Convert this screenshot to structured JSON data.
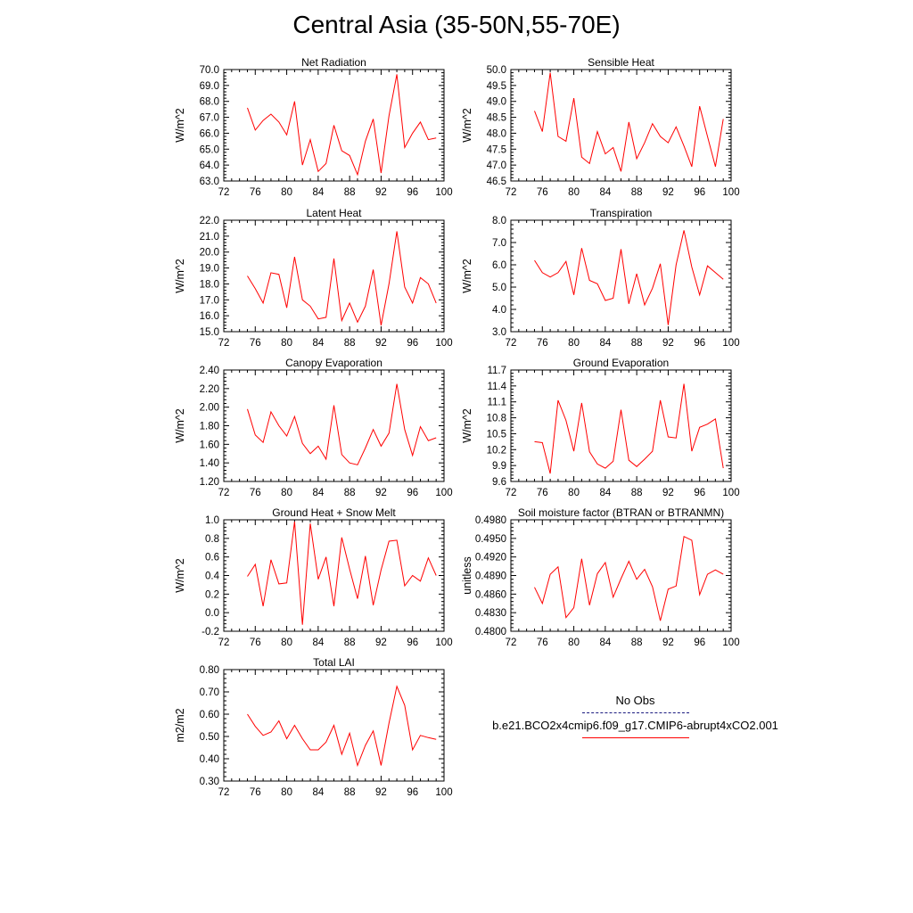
{
  "title": "Central Asia (35-50N,55-70E)",
  "legend": {
    "obs_label": "No Obs",
    "case_label": "b.e21.BCO2x4cmip6.f09_g17.CMIP6-abrupt4xCO2.001",
    "obs_color": "#1a1a80",
    "case_color": "#ff0000"
  },
  "chart_data": [
    {
      "type": "line",
      "title": "Net Radiation",
      "ylabel": "W/m^2",
      "xlim": [
        72,
        100
      ],
      "xticks": [
        "72",
        "76",
        "80",
        "84",
        "88",
        "92",
        "96",
        "100"
      ],
      "ylim": [
        63.0,
        70.0
      ],
      "yticks": [
        "63.0",
        "64.0",
        "65.0",
        "66.0",
        "67.0",
        "68.0",
        "69.0",
        "70.0"
      ],
      "x": [
        75,
        76,
        77,
        78,
        79,
        80,
        81,
        82,
        83,
        84,
        85,
        86,
        87,
        88,
        89,
        90,
        91,
        92,
        93,
        94,
        95,
        96,
        97,
        98,
        99
      ],
      "series": [
        {
          "values": [
            67.6,
            66.2,
            66.8,
            67.2,
            66.7,
            65.9,
            68.0,
            64.0,
            65.6,
            63.6,
            64.1,
            66.5,
            64.9,
            64.6,
            63.4,
            65.5,
            66.9,
            63.5,
            67.1,
            69.7,
            65.1,
            66.0,
            66.7,
            65.6,
            65.7
          ],
          "color": "#ff0000"
        }
      ]
    },
    {
      "type": "line",
      "title": "Sensible Heat",
      "ylabel": "W/m^2",
      "xlim": [
        72,
        100
      ],
      "xticks": [
        "72",
        "76",
        "80",
        "84",
        "88",
        "92",
        "96",
        "100"
      ],
      "ylim": [
        46.5,
        50.0
      ],
      "yticks": [
        "46.5",
        "47.0",
        "47.5",
        "48.0",
        "48.5",
        "49.0",
        "49.5",
        "50.0"
      ],
      "x": [
        75,
        76,
        77,
        78,
        79,
        80,
        81,
        82,
        83,
        84,
        85,
        86,
        87,
        88,
        89,
        90,
        91,
        92,
        93,
        94,
        95,
        96,
        97,
        98,
        99
      ],
      "series": [
        {
          "values": [
            48.7,
            48.05,
            49.9,
            47.9,
            47.75,
            49.1,
            47.25,
            47.05,
            48.05,
            47.35,
            47.55,
            46.8,
            48.35,
            47.2,
            47.7,
            48.3,
            47.9,
            47.7,
            48.2,
            47.6,
            46.95,
            48.85,
            47.9,
            46.95,
            48.45
          ],
          "color": "#ff0000"
        }
      ]
    },
    {
      "type": "line",
      "title": "Latent Heat",
      "ylabel": "W/m^2",
      "xlim": [
        72,
        100
      ],
      "xticks": [
        "72",
        "76",
        "80",
        "84",
        "88",
        "92",
        "96",
        "100"
      ],
      "ylim": [
        15.0,
        22.0
      ],
      "yticks": [
        "15.0",
        "16.0",
        "17.0",
        "18.0",
        "19.0",
        "20.0",
        "21.0",
        "22.0"
      ],
      "x": [
        75,
        76,
        77,
        78,
        79,
        80,
        81,
        82,
        83,
        84,
        85,
        86,
        87,
        88,
        89,
        90,
        91,
        92,
        93,
        94,
        95,
        96,
        97,
        98,
        99
      ],
      "series": [
        {
          "values": [
            18.5,
            17.7,
            16.8,
            18.7,
            18.6,
            16.5,
            19.7,
            17.0,
            16.6,
            15.8,
            15.9,
            19.6,
            15.7,
            16.8,
            15.6,
            16.6,
            18.9,
            15.4,
            18.0,
            21.3,
            17.8,
            16.8,
            18.4,
            18.0,
            16.8
          ],
          "color": "#ff0000"
        }
      ]
    },
    {
      "type": "line",
      "title": "Transpiration",
      "ylabel": "W/m^2",
      "xlim": [
        72,
        100
      ],
      "xticks": [
        "72",
        "76",
        "80",
        "84",
        "88",
        "92",
        "96",
        "100"
      ],
      "ylim": [
        3.0,
        8.0
      ],
      "yticks": [
        "3.0",
        "4.0",
        "5.0",
        "6.0",
        "7.0",
        "8.0"
      ],
      "x": [
        75,
        76,
        77,
        78,
        79,
        80,
        81,
        82,
        83,
        84,
        85,
        86,
        87,
        88,
        89,
        90,
        91,
        92,
        93,
        94,
        95,
        96,
        97,
        98,
        99
      ],
      "series": [
        {
          "values": [
            6.2,
            5.65,
            5.45,
            5.65,
            6.15,
            4.65,
            6.75,
            5.3,
            5.15,
            4.4,
            4.5,
            6.7,
            4.25,
            5.6,
            4.2,
            4.95,
            6.05,
            3.3,
            6.0,
            7.55,
            5.9,
            4.65,
            5.95,
            5.65,
            5.35
          ],
          "color": "#ff0000"
        }
      ]
    },
    {
      "type": "line",
      "title": "Canopy Evaporation",
      "ylabel": "W/m^2",
      "xlim": [
        72,
        100
      ],
      "xticks": [
        "72",
        "76",
        "80",
        "84",
        "88",
        "92",
        "96",
        "100"
      ],
      "ylim": [
        1.2,
        2.4
      ],
      "yticks": [
        "1.20",
        "1.40",
        "1.60",
        "1.80",
        "2.00",
        "2.20",
        "2.40"
      ],
      "x": [
        75,
        76,
        77,
        78,
        79,
        80,
        81,
        82,
        83,
        84,
        85,
        86,
        87,
        88,
        89,
        90,
        91,
        92,
        93,
        94,
        95,
        96,
        97,
        98,
        99
      ],
      "series": [
        {
          "values": [
            1.98,
            1.7,
            1.62,
            1.95,
            1.8,
            1.69,
            1.9,
            1.61,
            1.5,
            1.58,
            1.44,
            2.02,
            1.49,
            1.4,
            1.38,
            1.56,
            1.76,
            1.58,
            1.72,
            2.25,
            1.76,
            1.48,
            1.79,
            1.64,
            1.67
          ],
          "color": "#ff0000"
        }
      ]
    },
    {
      "type": "line",
      "title": "Ground Evaporation",
      "ylabel": "W/m^2",
      "xlim": [
        72,
        100
      ],
      "xticks": [
        "72",
        "76",
        "80",
        "84",
        "88",
        "92",
        "96",
        "100"
      ],
      "ylim": [
        9.6,
        11.7
      ],
      "yticks": [
        "9.6",
        "9.9",
        "10.2",
        "10.5",
        "10.8",
        "11.1",
        "11.4",
        "11.7"
      ],
      "x": [
        75,
        76,
        77,
        78,
        79,
        80,
        81,
        82,
        83,
        84,
        85,
        86,
        87,
        88,
        89,
        90,
        91,
        92,
        93,
        94,
        95,
        96,
        97,
        98,
        99
      ],
      "series": [
        {
          "values": [
            10.35,
            10.33,
            9.75,
            11.13,
            10.75,
            10.17,
            11.08,
            10.16,
            9.93,
            9.85,
            9.98,
            10.95,
            10.0,
            9.88,
            10.02,
            10.17,
            11.13,
            10.44,
            10.42,
            11.44,
            10.17,
            10.62,
            10.68,
            10.78,
            9.85
          ],
          "color": "#ff0000"
        }
      ]
    },
    {
      "type": "line",
      "title": "Ground Heat + Snow Melt",
      "ylabel": "W/m^2",
      "xlim": [
        72,
        100
      ],
      "xticks": [
        "72",
        "76",
        "80",
        "84",
        "88",
        "92",
        "96",
        "100"
      ],
      "ylim": [
        -0.2,
        1.0
      ],
      "yticks": [
        "-0.2",
        "0.0",
        "0.2",
        "0.4",
        "0.6",
        "0.8",
        "1.0"
      ],
      "x": [
        75,
        76,
        77,
        78,
        79,
        80,
        81,
        82,
        83,
        84,
        85,
        86,
        87,
        88,
        89,
        90,
        91,
        92,
        93,
        94,
        95,
        96,
        97,
        98,
        99
      ],
      "series": [
        {
          "values": [
            0.39,
            0.52,
            0.07,
            0.57,
            0.31,
            0.32,
            0.98,
            -0.13,
            0.96,
            0.36,
            0.6,
            0.07,
            0.81,
            0.47,
            0.15,
            0.61,
            0.08,
            0.46,
            0.77,
            0.78,
            0.29,
            0.4,
            0.34,
            0.59,
            0.4
          ],
          "color": "#ff0000"
        }
      ]
    },
    {
      "type": "line",
      "title": "Soil moisture factor (BTRAN or BTRANMN)",
      "ylabel": "unitless",
      "xlim": [
        72,
        100
      ],
      "xticks": [
        "72",
        "76",
        "80",
        "84",
        "88",
        "92",
        "96",
        "100"
      ],
      "ylim": [
        0.48,
        0.498
      ],
      "yticks": [
        "0.4800",
        "0.4830",
        "0.4860",
        "0.4890",
        "0.4920",
        "0.4950",
        "0.4980"
      ],
      "x": [
        75,
        76,
        77,
        78,
        79,
        80,
        81,
        82,
        83,
        84,
        85,
        86,
        87,
        88,
        89,
        90,
        91,
        92,
        93,
        94,
        95,
        96,
        97,
        98,
        99
      ],
      "series": [
        {
          "values": [
            0.4871,
            0.4845,
            0.4892,
            0.4904,
            0.4822,
            0.4838,
            0.4917,
            0.4842,
            0.4893,
            0.4911,
            0.4855,
            0.4885,
            0.4913,
            0.4884,
            0.49,
            0.4872,
            0.4817,
            0.4868,
            0.4873,
            0.4953,
            0.4947,
            0.4859,
            0.4892,
            0.4899,
            0.4892
          ],
          "color": "#ff0000"
        }
      ]
    },
    {
      "type": "line",
      "title": "Total LAI",
      "ylabel": "m2/m2",
      "xlim": [
        72,
        100
      ],
      "xticks": [
        "72",
        "76",
        "80",
        "84",
        "88",
        "92",
        "96",
        "100"
      ],
      "ylim": [
        0.3,
        0.8
      ],
      "yticks": [
        "0.30",
        "0.40",
        "0.50",
        "0.60",
        "0.70",
        "0.80"
      ],
      "x": [
        75,
        76,
        77,
        78,
        79,
        80,
        81,
        82,
        83,
        84,
        85,
        86,
        87,
        88,
        89,
        90,
        91,
        92,
        93,
        94,
        95,
        96,
        97,
        98,
        99
      ],
      "series": [
        {
          "values": [
            0.6,
            0.545,
            0.505,
            0.52,
            0.57,
            0.49,
            0.55,
            0.49,
            0.44,
            0.44,
            0.475,
            0.55,
            0.42,
            0.515,
            0.37,
            0.46,
            0.525,
            0.37,
            0.56,
            0.725,
            0.64,
            0.44,
            0.505,
            0.495,
            0.487
          ],
          "color": "#ff0000"
        }
      ]
    }
  ]
}
